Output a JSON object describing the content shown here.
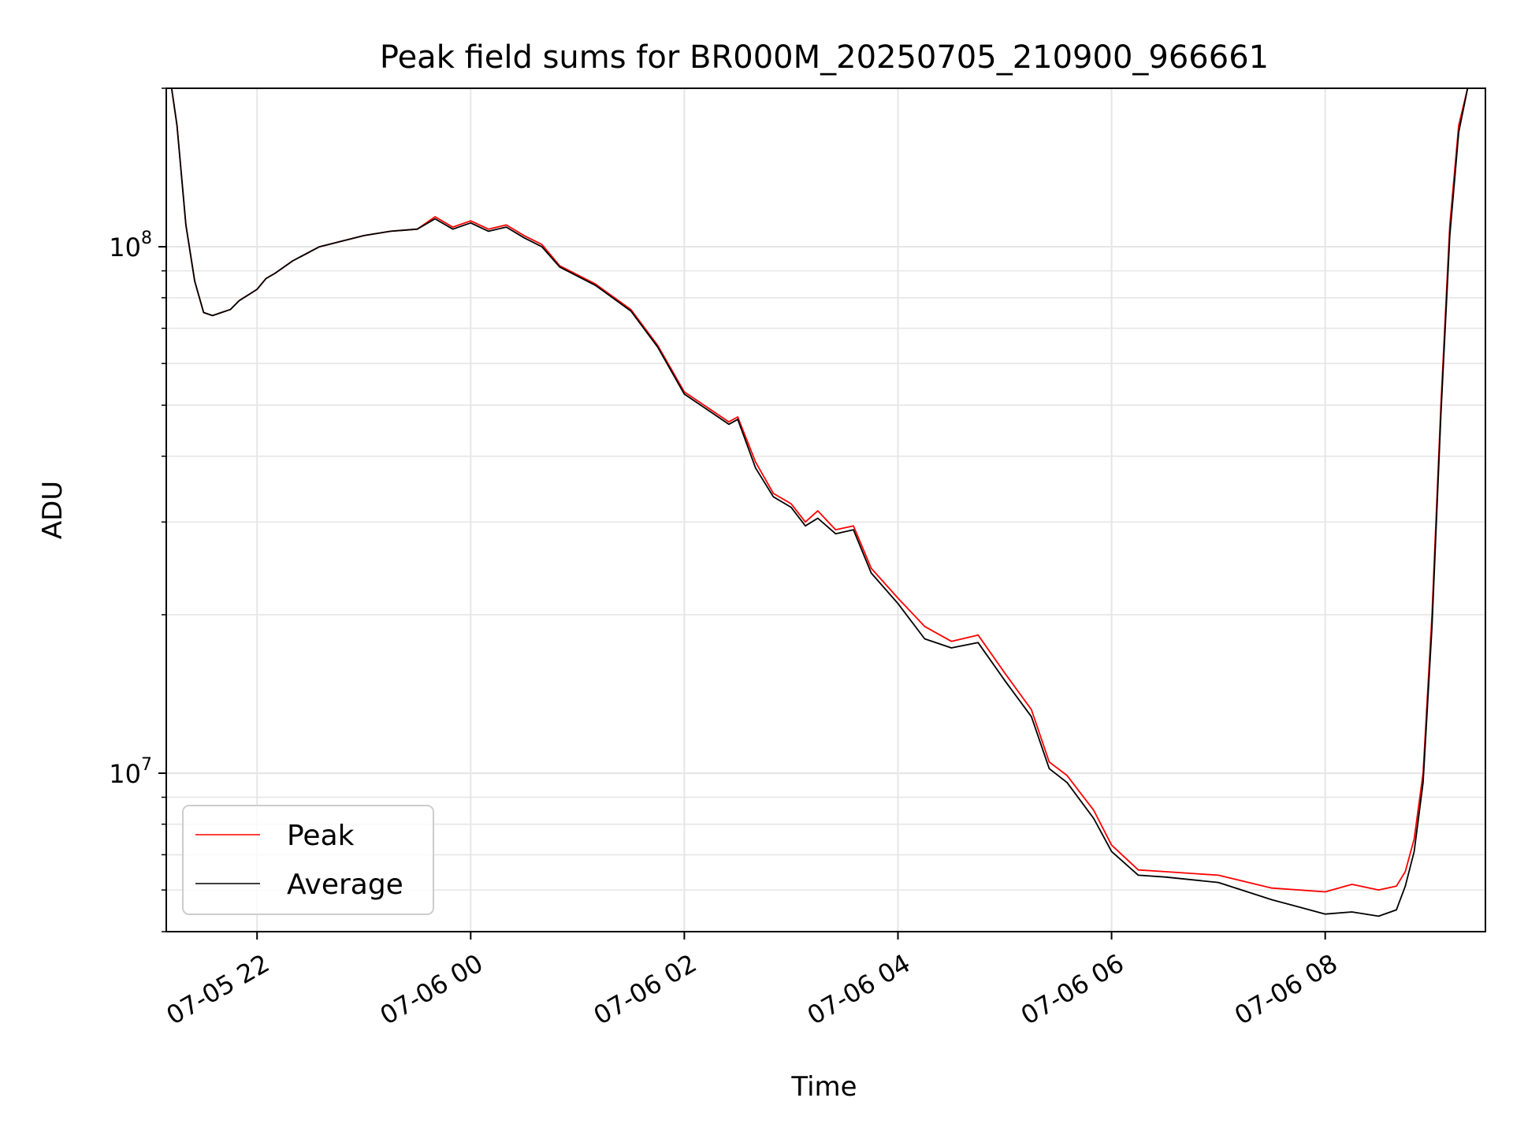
{
  "chart_data": {
    "type": "line",
    "title": "Peak field sums for BR000M_20250705_210900_966661",
    "xlabel": "Time",
    "ylabel": "ADU",
    "yscale": "log",
    "ylim": [
      5000000,
      200000000
    ],
    "xlim": [
      "2025-07-05 21:09",
      "2025-07-06 09:30"
    ],
    "grid": true,
    "legend_position": "bottom-left",
    "x_ticks": [
      {
        "value": "2025-07-05 22:00",
        "label": "07-05 22"
      },
      {
        "value": "2025-07-06 00:00",
        "label": "07-06 00"
      },
      {
        "value": "2025-07-06 02:00",
        "label": "07-06 02"
      },
      {
        "value": "2025-07-06 04:00",
        "label": "07-06 04"
      },
      {
        "value": "2025-07-06 06:00",
        "label": "07-06 06"
      },
      {
        "value": "2025-07-06 08:00",
        "label": "07-06 08"
      }
    ],
    "y_ticks": [
      {
        "value": 10000000,
        "base": "10",
        "exp": "7"
      },
      {
        "value": 100000000,
        "base": "10",
        "exp": "8"
      }
    ],
    "series": [
      {
        "name": "Peak",
        "color": "#ff0000",
        "x": [
          "2025-07-05 21:09",
          "2025-07-05 21:12",
          "2025-07-05 21:15",
          "2025-07-05 21:20",
          "2025-07-05 21:25",
          "2025-07-05 21:30",
          "2025-07-05 21:35",
          "2025-07-05 21:40",
          "2025-07-05 21:45",
          "2025-07-05 21:50",
          "2025-07-05 22:00",
          "2025-07-05 22:05",
          "2025-07-05 22:10",
          "2025-07-05 22:20",
          "2025-07-05 22:35",
          "2025-07-05 23:00",
          "2025-07-05 23:15",
          "2025-07-05 23:30",
          "2025-07-05 23:40",
          "2025-07-05 23:50",
          "2025-07-06 00:00",
          "2025-07-06 00:10",
          "2025-07-06 00:20",
          "2025-07-06 00:30",
          "2025-07-06 00:40",
          "2025-07-06 00:50",
          "2025-07-06 01:10",
          "2025-07-06 01:30",
          "2025-07-06 01:45",
          "2025-07-06 02:00",
          "2025-07-06 02:15",
          "2025-07-06 02:25",
          "2025-07-06 02:30",
          "2025-07-06 02:40",
          "2025-07-06 02:50",
          "2025-07-06 03:00",
          "2025-07-06 03:08",
          "2025-07-06 03:15",
          "2025-07-06 03:25",
          "2025-07-06 03:35",
          "2025-07-06 03:45",
          "2025-07-06 04:00",
          "2025-07-06 04:15",
          "2025-07-06 04:30",
          "2025-07-06 04:45",
          "2025-07-06 05:00",
          "2025-07-06 05:15",
          "2025-07-06 05:25",
          "2025-07-06 05:35",
          "2025-07-06 05:50",
          "2025-07-06 06:00",
          "2025-07-06 06:15",
          "2025-07-06 06:30",
          "2025-07-06 07:00",
          "2025-07-06 07:30",
          "2025-07-06 08:00",
          "2025-07-06 08:15",
          "2025-07-06 08:30",
          "2025-07-06 08:40",
          "2025-07-06 08:45",
          "2025-07-06 08:50",
          "2025-07-06 08:55",
          "2025-07-06 09:00",
          "2025-07-06 09:05",
          "2025-07-06 09:10",
          "2025-07-06 09:15",
          "2025-07-06 09:20",
          "2025-07-06 09:25"
        ],
        "y": [
          200000000,
          200000000,
          170000000,
          110000000,
          86000000,
          75000000,
          74000000,
          75000000,
          76000000,
          79000000,
          83000000,
          87000000,
          89000000,
          94000000,
          100000000,
          105000000,
          107000000,
          108000000,
          114000000,
          109000000,
          112000000,
          108000000,
          110000000,
          105000000,
          101000000,
          92000000,
          85000000,
          76000000,
          65000000,
          53000000,
          49000000,
          46500000,
          47500000,
          39000000,
          34000000,
          32500000,
          30000000,
          31500000,
          29000000,
          29500000,
          24500000,
          21500000,
          19000000,
          17800000,
          18300000,
          15500000,
          13200000,
          10500000,
          9900000,
          8500000,
          7300000,
          6550000,
          6500000,
          6400000,
          6050000,
          5950000,
          6150000,
          6000000,
          6100000,
          6500000,
          7500000,
          10000000,
          20000000,
          50000000,
          110000000,
          170000000,
          200000000,
          200000000
        ]
      },
      {
        "name": "Average",
        "color": "#000000",
        "x": [
          "2025-07-05 21:09",
          "2025-07-05 21:12",
          "2025-07-05 21:15",
          "2025-07-05 21:20",
          "2025-07-05 21:25",
          "2025-07-05 21:30",
          "2025-07-05 21:35",
          "2025-07-05 21:40",
          "2025-07-05 21:45",
          "2025-07-05 21:50",
          "2025-07-05 22:00",
          "2025-07-05 22:05",
          "2025-07-05 22:10",
          "2025-07-05 22:20",
          "2025-07-05 22:35",
          "2025-07-05 23:00",
          "2025-07-05 23:15",
          "2025-07-05 23:30",
          "2025-07-05 23:40",
          "2025-07-05 23:50",
          "2025-07-06 00:00",
          "2025-07-06 00:10",
          "2025-07-06 00:20",
          "2025-07-06 00:30",
          "2025-07-06 00:40",
          "2025-07-06 00:50",
          "2025-07-06 01:10",
          "2025-07-06 01:30",
          "2025-07-06 01:45",
          "2025-07-06 02:00",
          "2025-07-06 02:15",
          "2025-07-06 02:25",
          "2025-07-06 02:30",
          "2025-07-06 02:40",
          "2025-07-06 02:50",
          "2025-07-06 03:00",
          "2025-07-06 03:08",
          "2025-07-06 03:15",
          "2025-07-06 03:25",
          "2025-07-06 03:35",
          "2025-07-06 03:45",
          "2025-07-06 04:00",
          "2025-07-06 04:15",
          "2025-07-06 04:30",
          "2025-07-06 04:45",
          "2025-07-06 05:00",
          "2025-07-06 05:15",
          "2025-07-06 05:25",
          "2025-07-06 05:35",
          "2025-07-06 05:50",
          "2025-07-06 06:00",
          "2025-07-06 06:15",
          "2025-07-06 06:30",
          "2025-07-06 07:00",
          "2025-07-06 07:30",
          "2025-07-06 08:00",
          "2025-07-06 08:15",
          "2025-07-06 08:30",
          "2025-07-06 08:40",
          "2025-07-06 08:45",
          "2025-07-06 08:50",
          "2025-07-06 08:55",
          "2025-07-06 09:00",
          "2025-07-06 09:05",
          "2025-07-06 09:10",
          "2025-07-06 09:15",
          "2025-07-06 09:20",
          "2025-07-06 09:25"
        ],
        "y": [
          200000000,
          200000000,
          170000000,
          110000000,
          86000000,
          75000000,
          74000000,
          75000000,
          76000000,
          79000000,
          83000000,
          87000000,
          89000000,
          94000000,
          100000000,
          105000000,
          107000000,
          108000000,
          113000000,
          108000000,
          111000000,
          107000000,
          109000000,
          104000000,
          100000000,
          91500000,
          84500000,
          75500000,
          64500000,
          52500000,
          48500000,
          46000000,
          47000000,
          38000000,
          33500000,
          32000000,
          29500000,
          30500000,
          28500000,
          29000000,
          24000000,
          21000000,
          18000000,
          17300000,
          17700000,
          15000000,
          12800000,
          10200000,
          9600000,
          8200000,
          7100000,
          6400000,
          6350000,
          6200000,
          5750000,
          5400000,
          5450000,
          5350000,
          5500000,
          6100000,
          7100000,
          9600000,
          19000000,
          48000000,
          105000000,
          165000000,
          200000000,
          200000000
        ]
      }
    ]
  }
}
